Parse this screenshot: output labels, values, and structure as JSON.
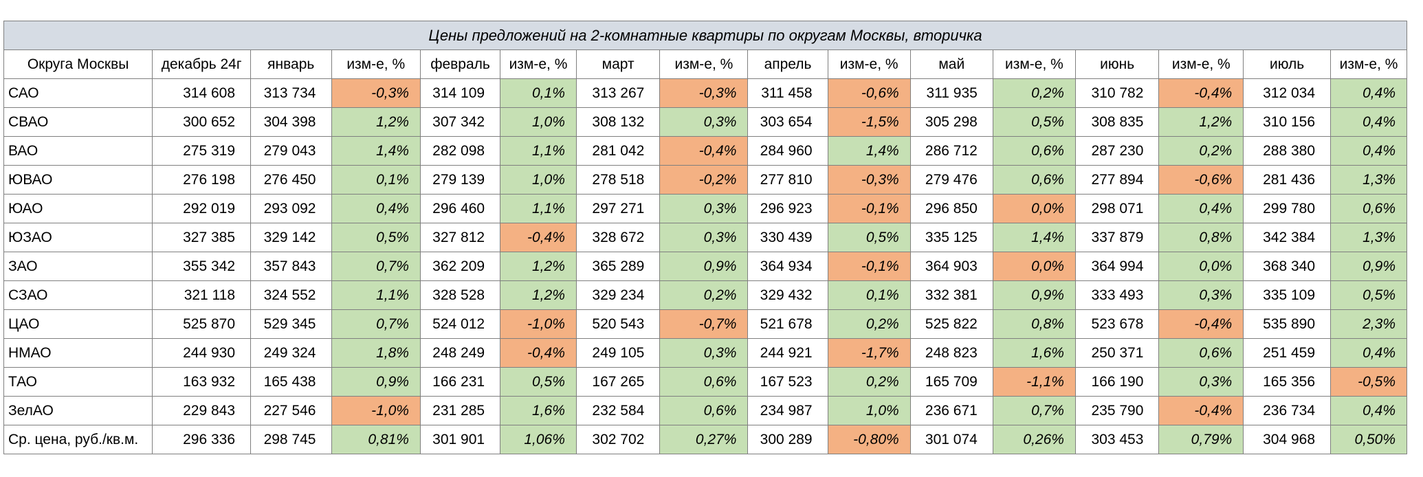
{
  "title": "Цены предложений на 2-комнатные квартиры по округам Москвы, вторичка",
  "colors": {
    "header_fill": "#d6dce4",
    "positive_fill": "#c6e0b4",
    "negative_fill": "#f4b183",
    "border": "#7f7f7f"
  },
  "columns": [
    "Округа Москвы",
    "декабрь 24г",
    "январь",
    "изм-е, %",
    "февраль",
    "изм-е, %",
    "март",
    "изм-е, %",
    "апрель",
    "изм-е, %",
    "май",
    "изм-е, %",
    "июнь",
    "изм-е, %",
    "июль",
    "изм-е, %"
  ],
  "rows": [
    {
      "district": "САО",
      "dec": "314 608",
      "months": [
        {
          "price": "313 734",
          "change": "-0,3%",
          "sign": "neg"
        },
        {
          "price": "314 109",
          "change": "0,1%",
          "sign": "pos"
        },
        {
          "price": "313 267",
          "change": "-0,3%",
          "sign": "neg"
        },
        {
          "price": "311 458",
          "change": "-0,6%",
          "sign": "neg"
        },
        {
          "price": "311 935",
          "change": "0,2%",
          "sign": "pos"
        },
        {
          "price": "310 782",
          "change": "-0,4%",
          "sign": "neg"
        },
        {
          "price": "312 034",
          "change": "0,4%",
          "sign": "pos"
        }
      ]
    },
    {
      "district": "СВАО",
      "dec": "300 652",
      "months": [
        {
          "price": "304 398",
          "change": "1,2%",
          "sign": "pos"
        },
        {
          "price": "307 342",
          "change": "1,0%",
          "sign": "pos"
        },
        {
          "price": "308 132",
          "change": "0,3%",
          "sign": "pos"
        },
        {
          "price": "303 654",
          "change": "-1,5%",
          "sign": "neg"
        },
        {
          "price": "305 298",
          "change": "0,5%",
          "sign": "pos"
        },
        {
          "price": "308 835",
          "change": "1,2%",
          "sign": "pos"
        },
        {
          "price": "310 156",
          "change": "0,4%",
          "sign": "pos"
        }
      ]
    },
    {
      "district": "ВАО",
      "dec": "275 319",
      "months": [
        {
          "price": "279 043",
          "change": "1,4%",
          "sign": "pos"
        },
        {
          "price": "282 098",
          "change": "1,1%",
          "sign": "pos"
        },
        {
          "price": "281 042",
          "change": "-0,4%",
          "sign": "neg"
        },
        {
          "price": "284 960",
          "change": "1,4%",
          "sign": "pos"
        },
        {
          "price": "286 712",
          "change": "0,6%",
          "sign": "pos"
        },
        {
          "price": "287 230",
          "change": "0,2%",
          "sign": "pos"
        },
        {
          "price": "288 380",
          "change": "0,4%",
          "sign": "pos"
        }
      ]
    },
    {
      "district": "ЮВАО",
      "dec": "276 198",
      "months": [
        {
          "price": "276 450",
          "change": "0,1%",
          "sign": "pos"
        },
        {
          "price": "279 139",
          "change": "1,0%",
          "sign": "pos"
        },
        {
          "price": "278 518",
          "change": "-0,2%",
          "sign": "neg"
        },
        {
          "price": "277 810",
          "change": "-0,3%",
          "sign": "neg"
        },
        {
          "price": "279 476",
          "change": "0,6%",
          "sign": "pos"
        },
        {
          "price": "277 894",
          "change": "-0,6%",
          "sign": "neg"
        },
        {
          "price": "281 436",
          "change": "1,3%",
          "sign": "pos"
        }
      ]
    },
    {
      "district": "ЮАО",
      "dec": "292 019",
      "months": [
        {
          "price": "293 092",
          "change": "0,4%",
          "sign": "pos"
        },
        {
          "price": "296 460",
          "change": "1,1%",
          "sign": "pos"
        },
        {
          "price": "297 271",
          "change": "0,3%",
          "sign": "pos"
        },
        {
          "price": "296 923",
          "change": "-0,1%",
          "sign": "neg"
        },
        {
          "price": "296 850",
          "change": "0,0%",
          "sign": "neg"
        },
        {
          "price": "298 071",
          "change": "0,4%",
          "sign": "pos"
        },
        {
          "price": "299 780",
          "change": "0,6%",
          "sign": "pos"
        }
      ]
    },
    {
      "district": "ЮЗАО",
      "dec": "327 385",
      "months": [
        {
          "price": "329 142",
          "change": "0,5%",
          "sign": "pos"
        },
        {
          "price": "327 812",
          "change": "-0,4%",
          "sign": "neg"
        },
        {
          "price": "328 672",
          "change": "0,3%",
          "sign": "pos"
        },
        {
          "price": "330 439",
          "change": "0,5%",
          "sign": "pos"
        },
        {
          "price": "335 125",
          "change": "1,4%",
          "sign": "pos"
        },
        {
          "price": "337 879",
          "change": "0,8%",
          "sign": "pos"
        },
        {
          "price": "342 384",
          "change": "1,3%",
          "sign": "pos"
        }
      ]
    },
    {
      "district": "ЗАО",
      "dec": "355 342",
      "months": [
        {
          "price": "357 843",
          "change": "0,7%",
          "sign": "pos"
        },
        {
          "price": "362 209",
          "change": "1,2%",
          "sign": "pos"
        },
        {
          "price": "365 289",
          "change": "0,9%",
          "sign": "pos"
        },
        {
          "price": "364 934",
          "change": "-0,1%",
          "sign": "neg"
        },
        {
          "price": "364 903",
          "change": "0,0%",
          "sign": "neg"
        },
        {
          "price": "364 994",
          "change": "0,0%",
          "sign": "pos"
        },
        {
          "price": "368 340",
          "change": "0,9%",
          "sign": "pos"
        }
      ]
    },
    {
      "district": "СЗАО",
      "dec": "321 118",
      "months": [
        {
          "price": "324 552",
          "change": "1,1%",
          "sign": "pos"
        },
        {
          "price": "328 528",
          "change": "1,2%",
          "sign": "pos"
        },
        {
          "price": "329 234",
          "change": "0,2%",
          "sign": "pos"
        },
        {
          "price": "329 432",
          "change": "0,1%",
          "sign": "pos"
        },
        {
          "price": "332 381",
          "change": "0,9%",
          "sign": "pos"
        },
        {
          "price": "333 493",
          "change": "0,3%",
          "sign": "pos"
        },
        {
          "price": "335 109",
          "change": "0,5%",
          "sign": "pos"
        }
      ]
    },
    {
      "district": "ЦАО",
      "dec": "525 870",
      "months": [
        {
          "price": "529 345",
          "change": "0,7%",
          "sign": "pos"
        },
        {
          "price": "524 012",
          "change": "-1,0%",
          "sign": "neg"
        },
        {
          "price": "520 543",
          "change": "-0,7%",
          "sign": "neg"
        },
        {
          "price": "521 678",
          "change": "0,2%",
          "sign": "pos"
        },
        {
          "price": "525 822",
          "change": "0,8%",
          "sign": "pos"
        },
        {
          "price": "523 678",
          "change": "-0,4%",
          "sign": "neg"
        },
        {
          "price": "535 890",
          "change": "2,3%",
          "sign": "pos"
        }
      ]
    },
    {
      "district": "НМАО",
      "dec": "244 930",
      "months": [
        {
          "price": "249 324",
          "change": "1,8%",
          "sign": "pos"
        },
        {
          "price": "248 249",
          "change": "-0,4%",
          "sign": "neg"
        },
        {
          "price": "249 105",
          "change": "0,3%",
          "sign": "pos"
        },
        {
          "price": "244 921",
          "change": "-1,7%",
          "sign": "neg"
        },
        {
          "price": "248 823",
          "change": "1,6%",
          "sign": "pos"
        },
        {
          "price": "250 371",
          "change": "0,6%",
          "sign": "pos"
        },
        {
          "price": "251 459",
          "change": "0,4%",
          "sign": "pos"
        }
      ]
    },
    {
      "district": "ТАО",
      "dec": "163 932",
      "months": [
        {
          "price": "165 438",
          "change": "0,9%",
          "sign": "pos"
        },
        {
          "price": "166 231",
          "change": "0,5%",
          "sign": "pos"
        },
        {
          "price": "167 265",
          "change": "0,6%",
          "sign": "pos"
        },
        {
          "price": "167 523",
          "change": "0,2%",
          "sign": "pos"
        },
        {
          "price": "165 709",
          "change": "-1,1%",
          "sign": "neg"
        },
        {
          "price": "166 190",
          "change": "0,3%",
          "sign": "pos"
        },
        {
          "price": "165 356",
          "change": "-0,5%",
          "sign": "neg"
        }
      ]
    },
    {
      "district": "ЗелАО",
      "dec": "229 843",
      "months": [
        {
          "price": "227 546",
          "change": "-1,0%",
          "sign": "neg"
        },
        {
          "price": "231 285",
          "change": "1,6%",
          "sign": "pos"
        },
        {
          "price": "232 584",
          "change": "0,6%",
          "sign": "pos"
        },
        {
          "price": "234 987",
          "change": "1,0%",
          "sign": "pos"
        },
        {
          "price": "236 671",
          "change": "0,7%",
          "sign": "pos"
        },
        {
          "price": "235 790",
          "change": "-0,4%",
          "sign": "neg"
        },
        {
          "price": "236 734",
          "change": "0,4%",
          "sign": "pos"
        }
      ]
    },
    {
      "district": "Ср. цена, руб./кв.м.",
      "dec": "296 336",
      "months": [
        {
          "price": "298 745",
          "change": "0,81%",
          "sign": "pos"
        },
        {
          "price": "301 901",
          "change": "1,06%",
          "sign": "pos"
        },
        {
          "price": "302 702",
          "change": "0,27%",
          "sign": "pos"
        },
        {
          "price": "300 289",
          "change": "-0,80%",
          "sign": "neg"
        },
        {
          "price": "301 074",
          "change": "0,26%",
          "sign": "pos"
        },
        {
          "price": "303 453",
          "change": "0,79%",
          "sign": "pos"
        },
        {
          "price": "304 968",
          "change": "0,50%",
          "sign": "pos"
        }
      ]
    }
  ]
}
